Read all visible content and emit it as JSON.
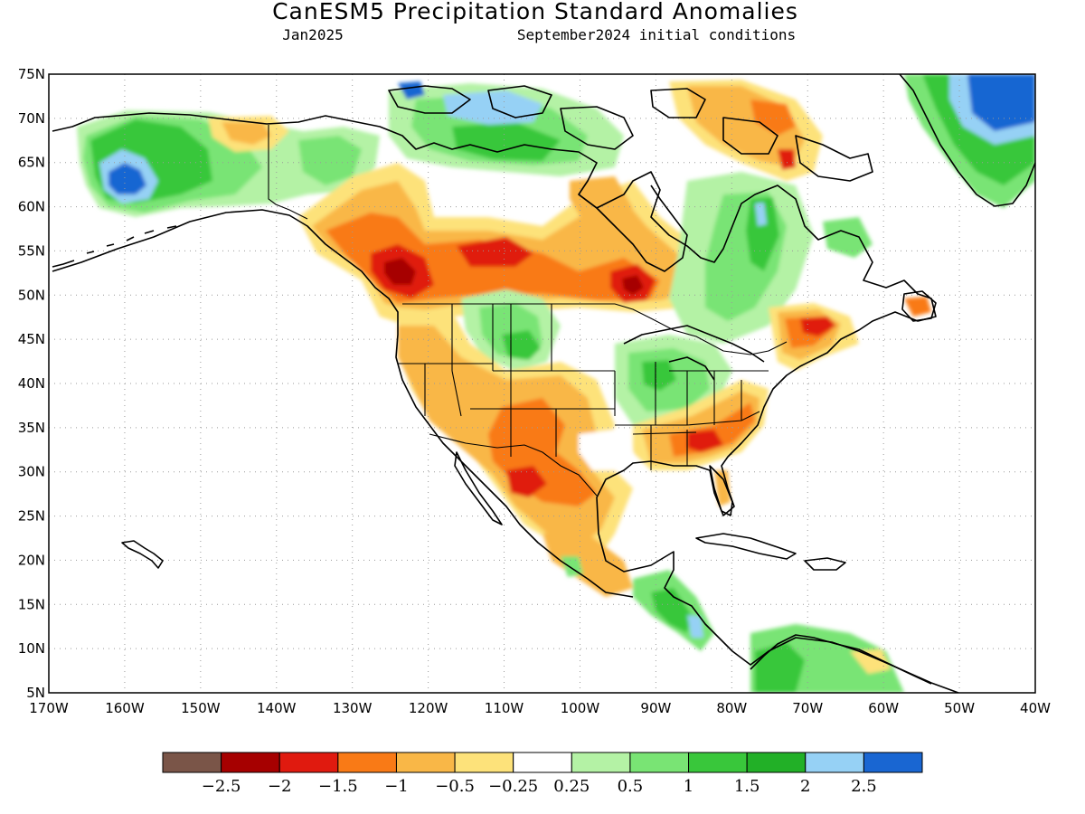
{
  "title": "CanESM5 Precipitation Standard Anomalies",
  "subtitle_left": "Jan2025",
  "subtitle_right": "September2024 initial conditions",
  "map": {
    "lon_range": [
      -170,
      -40
    ],
    "lat_range": [
      5,
      75
    ],
    "lat_ticks": [
      "75N",
      "70N",
      "65N",
      "60N",
      "55N",
      "50N",
      "45N",
      "40N",
      "35N",
      "30N",
      "25N",
      "20N",
      "15N",
      "10N",
      "5N"
    ],
    "lon_ticks": [
      "170W",
      "160W",
      "150W",
      "140W",
      "130W",
      "120W",
      "110W",
      "100W",
      "90W",
      "80W",
      "70W",
      "60W",
      "50W",
      "40W"
    ],
    "grid": "dotted",
    "anomaly_colors": {
      "strong_dry": "#e01a0f",
      "dry": "#f97a16",
      "moderate_dry": "#f9b747",
      "slight_dry": "#fde27a",
      "slight_wet": "#b4f2a5",
      "moderate_wet": "#79e474",
      "wet": "#39c73b",
      "very_wet": "#22b027",
      "strong_wet": "#96d1f5",
      "extreme_wet": "#1966d2",
      "extreme_dry": "#a60000"
    }
  },
  "legend": {
    "colors": [
      "#7a5548",
      "#a60000",
      "#e01a0f",
      "#f97a16",
      "#f9b747",
      "#fde27a",
      "#ffffff",
      "#b4f2a5",
      "#79e474",
      "#39c73b",
      "#22b027",
      "#96d1f5",
      "#1966d2"
    ],
    "labels": [
      "−2.5",
      "−2",
      "−1.5",
      "−1",
      "−0.5",
      "−0.25",
      "0.25",
      "0.5",
      "1",
      "1.5",
      "2",
      "2.5"
    ]
  }
}
